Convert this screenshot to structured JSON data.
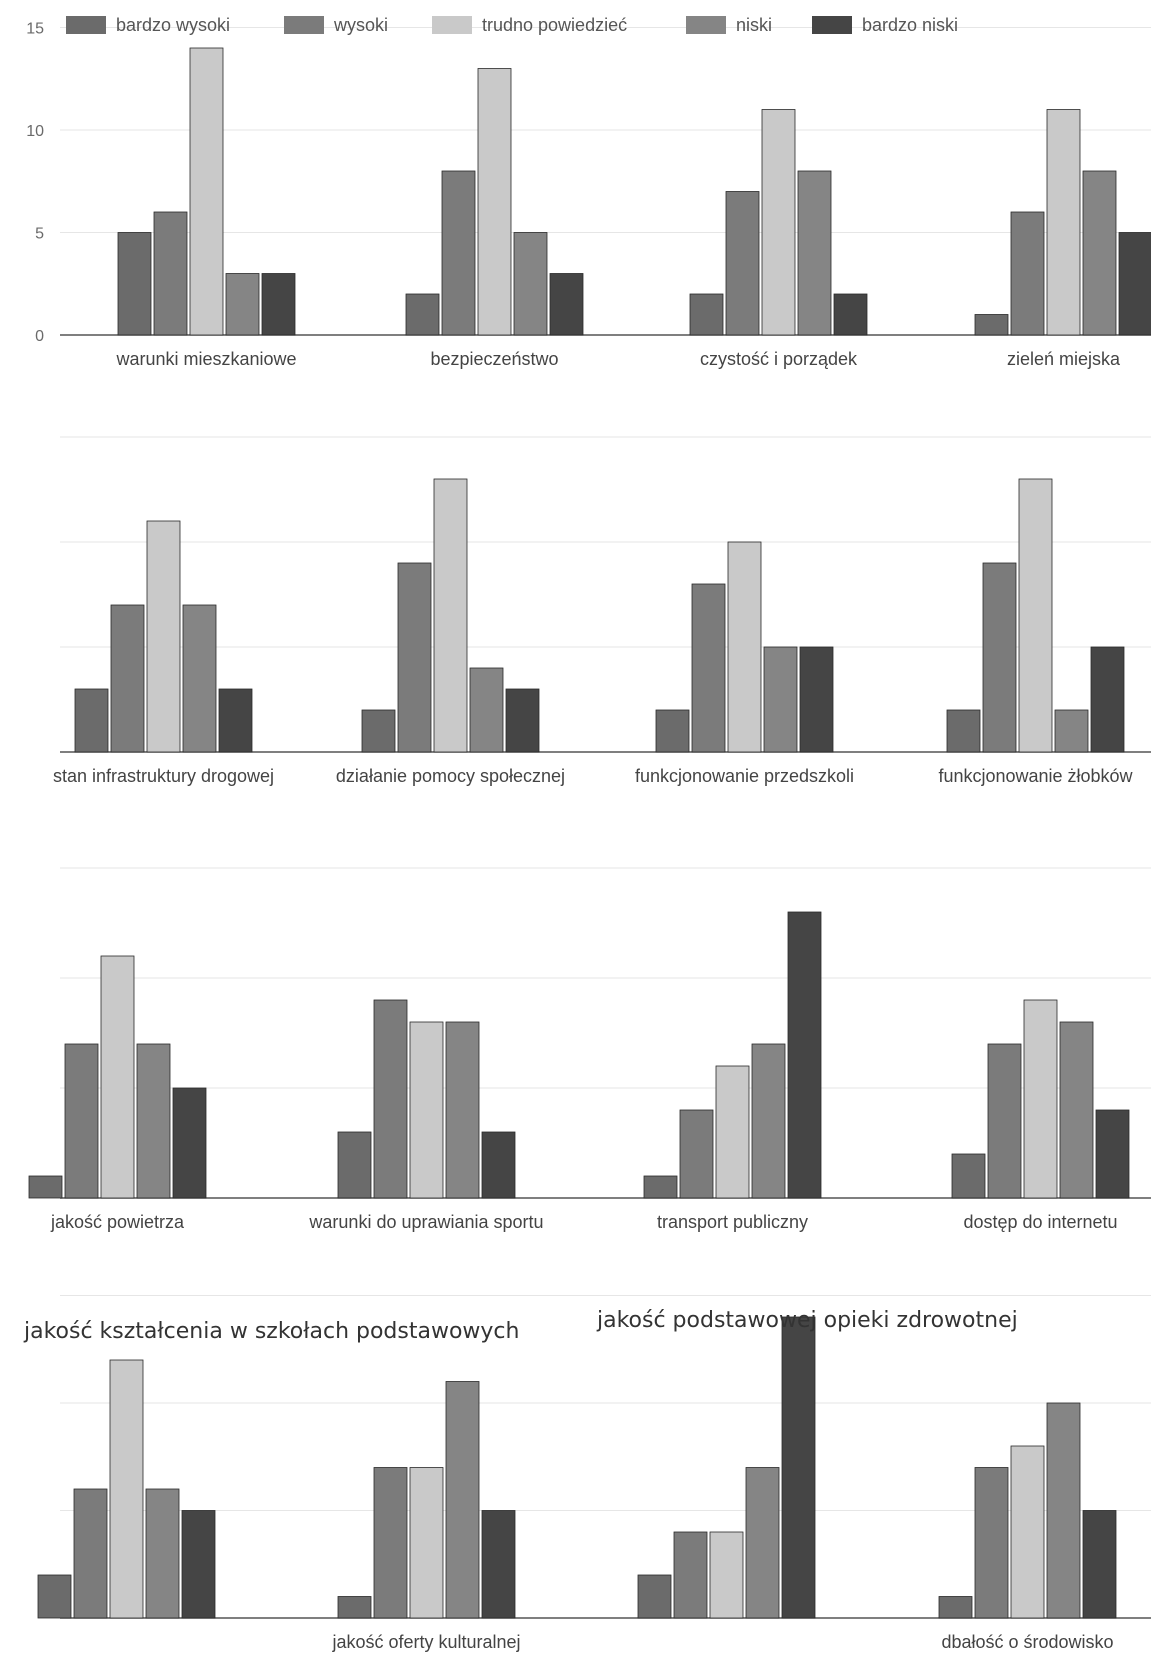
{
  "colors": {
    "bardzo_wysoki": "#6b6b6b",
    "wysoki": "#7b7b7b",
    "trudno_powiedziec": "#c9c9c9",
    "niski": "#858585",
    "bardzo_niski": "#454545",
    "grid": "#e6e6e6",
    "axis": "#555555"
  },
  "chart_data": {
    "type": "bar",
    "legend_position": "top",
    "grid": true,
    "ylim": [
      0,
      15
    ],
    "y_ticks": [
      "0",
      "5",
      "10",
      "15"
    ],
    "series": [
      {
        "name": "bardzo wysoki"
      },
      {
        "name": "wysoki"
      },
      {
        "name": "trudno powiedzieć"
      },
      {
        "name": "niski"
      },
      {
        "name": "bardzo niski"
      }
    ],
    "rows": [
      {
        "groups": [
          {
            "category": "warunki mieszkaniowe",
            "values": [
              5,
              6,
              14,
              3,
              3
            ]
          },
          {
            "category": "bezpieczeństwo",
            "values": [
              2,
              8,
              13,
              5,
              3
            ]
          },
          {
            "category": "czystość i porządek",
            "values": [
              2,
              7,
              11,
              8,
              2
            ]
          },
          {
            "category": "zieleń miejska",
            "values": [
              1,
              6,
              11,
              8,
              5
            ]
          }
        ]
      },
      {
        "groups": [
          {
            "category": "stan infrastruktury drogowej",
            "values": [
              3,
              7,
              11,
              7,
              3
            ]
          },
          {
            "category": "działanie pomocy społecznej",
            "values": [
              2,
              9,
              13,
              4,
              3
            ]
          },
          {
            "category": "funkcjonowanie przedszkoli",
            "values": [
              2,
              8,
              10,
              5,
              5
            ]
          },
          {
            "category": "funkcjonowanie żłobków",
            "values": [
              2,
              9,
              13,
              2,
              5
            ]
          }
        ]
      },
      {
        "groups": [
          {
            "category": "jakość powietrza",
            "values": [
              1,
              7,
              11,
              7,
              5
            ]
          },
          {
            "category": "warunki do uprawiania sportu",
            "values": [
              3,
              9,
              8,
              8,
              3
            ]
          },
          {
            "category": "transport publiczny",
            "values": [
              1,
              4,
              6,
              7,
              13
            ]
          },
          {
            "category": "dostęp do internetu",
            "values": [
              2,
              7,
              9,
              8,
              4
            ]
          }
        ]
      },
      {
        "groups": [
          {
            "category": "jakość kształcenia w szkołach podstawowych",
            "values": [
              2,
              6,
              12,
              6,
              5
            ]
          },
          {
            "category": "jakość oferty kulturalnej",
            "values": [
              1,
              7,
              7,
              11,
              5
            ]
          },
          {
            "category": "jakość podstawowej opieki zdrowotnej",
            "values": [
              2,
              4,
              4,
              7,
              14
            ]
          },
          {
            "category": "dbałość o środowisko",
            "values": [
              1,
              7,
              8,
              10,
              5
            ]
          }
        ]
      }
    ]
  }
}
